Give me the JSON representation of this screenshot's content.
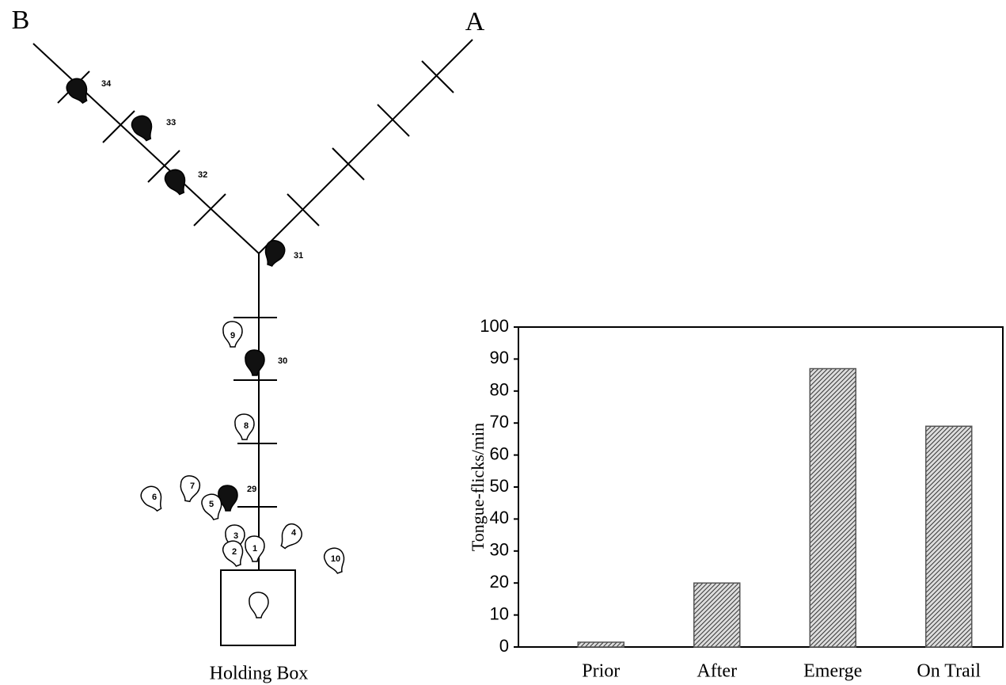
{
  "diagram": {
    "panel_labels": [
      "B",
      "A"
    ],
    "box_label": "Holding Box",
    "heads": [
      "34",
      "33",
      "32",
      "31",
      "30",
      "29",
      "9",
      "8",
      "7",
      "6",
      "5",
      "4",
      "3",
      "2",
      "1",
      "10"
    ]
  },
  "chart_data": {
    "type": "bar",
    "y_label": "Tongue-flicks/min",
    "categories": [
      "Prior",
      "After",
      "Emerge",
      "On Trail"
    ],
    "values": [
      1.5,
      20,
      87,
      69
    ],
    "color": "#555555",
    "ylim": [
      0,
      100
    ],
    "yticks": [
      0,
      10,
      20,
      30,
      40,
      50,
      60,
      70,
      80,
      90,
      100
    ],
    "grid": false
  }
}
